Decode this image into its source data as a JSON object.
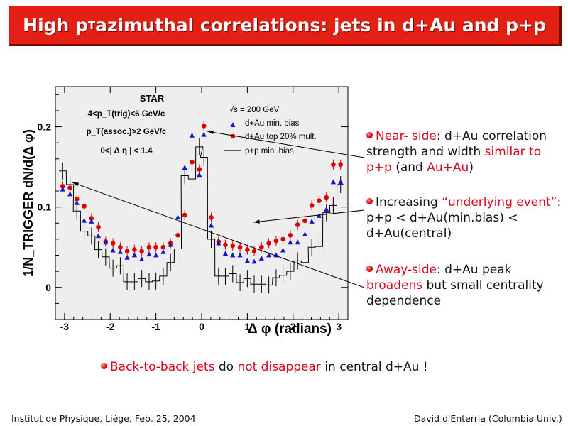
{
  "slide": {
    "title_pre": "High p",
    "title_sub": "T",
    "title_post": " azimuthal correlations: jets in d+Au and p+p",
    "bullets": [
      {
        "parts": [
          {
            "t": "Near- side",
            "red": true
          },
          {
            "t": ": d+Au correlation strength and width ",
            "red": false
          },
          {
            "t": "similar to p+p",
            "red": true
          },
          {
            "t": " (and ",
            "red": false
          },
          {
            "t": "Au+Au",
            "red": true
          },
          {
            "t": ")",
            "red": false
          }
        ]
      },
      {
        "parts": [
          {
            "t": "Increasing ",
            "red": false
          },
          {
            "t": "“underlying event”",
            "red": true
          },
          {
            "t": ": p+p < d+Au(min.bias) < d+Au(central)",
            "red": false
          }
        ]
      },
      {
        "parts": [
          {
            "t": "Away-side",
            "red": true
          },
          {
            "t": ": d+Au peak ",
            "red": false
          },
          {
            "t": "broadens",
            "red": true
          },
          {
            "t": " but small centrality dependence",
            "red": false
          }
        ]
      }
    ],
    "bottom": [
      {
        "t": "Back-to-back jets",
        "red": true
      },
      {
        "t": " do ",
        "red": false
      },
      {
        "t": "not disappear",
        "red": true
      },
      {
        "t": " in central d+Au !",
        "red": false
      }
    ],
    "footer_left": "Institut de Physique, Liège, Feb. 25, 2004",
    "footer_right": "David d'Enterria (Columbia Univ.)"
  },
  "chart_data": {
    "type": "scatter",
    "ylabel": "1/N_TRIGGER dN/d(Δ φ)",
    "xlabel": "Δ φ (radians)",
    "xlim": [
      -3.2,
      3.2
    ],
    "ylim": [
      -0.04,
      0.25
    ],
    "x_ticks": [
      -3,
      -2,
      -1,
      0,
      1,
      2,
      3
    ],
    "y_ticks": [
      0,
      0.1,
      0.2
    ],
    "annotations": [
      "STAR",
      "4<p_T(trig)<6 GeV/c",
      "p_T(assoc.)>2 GeV/c",
      "0<| Δ η | < 1.4",
      "√s = 200 GeV"
    ],
    "legend": [
      "d+Au min. bias",
      "d+Au top 20% mult.",
      "p+p min. bias"
    ],
    "x": [
      -3.04,
      -2.88,
      -2.73,
      -2.57,
      -2.41,
      -2.26,
      -2.1,
      -1.94,
      -1.78,
      -1.63,
      -1.47,
      -1.31,
      -1.15,
      -1.0,
      -0.84,
      -0.68,
      -0.52,
      -0.37,
      -0.21,
      -0.05,
      0.05,
      0.21,
      0.37,
      0.52,
      0.68,
      0.84,
      1.0,
      1.15,
      1.31,
      1.47,
      1.63,
      1.78,
      1.94,
      2.1,
      2.26,
      2.41,
      2.57,
      2.73,
      2.88,
      3.04
    ],
    "series": [
      {
        "name": "d+Au min. bias",
        "marker": "triangle",
        "color": "#1414c8",
        "values": [
          0.122,
          0.116,
          0.105,
          0.083,
          0.082,
          0.064,
          0.056,
          0.046,
          0.044,
          0.037,
          0.04,
          0.035,
          0.041,
          0.04,
          0.044,
          0.053,
          0.087,
          0.149,
          0.189,
          0.14,
          0.19,
          0.077,
          0.055,
          0.042,
          0.04,
          0.04,
          0.033,
          0.032,
          0.036,
          0.04,
          0.04,
          0.046,
          0.056,
          0.056,
          0.066,
          0.082,
          0.089,
          0.097,
          0.131,
          0.131
        ]
      },
      {
        "name": "d+Au top 20% mult.",
        "marker": "circle",
        "color": "#dc0000",
        "values": [
          0.126,
          0.124,
          0.11,
          0.101,
          0.086,
          0.075,
          0.057,
          0.055,
          0.05,
          0.045,
          0.047,
          0.045,
          0.05,
          0.05,
          0.05,
          0.055,
          0.065,
          0.09,
          0.156,
          0.147,
          0.201,
          0.087,
          0.057,
          0.053,
          0.052,
          0.05,
          0.047,
          0.045,
          0.05,
          0.055,
          0.058,
          0.06,
          0.065,
          0.078,
          0.083,
          0.102,
          0.108,
          0.112,
          0.153,
          0.153
        ]
      },
      {
        "name": "p+p min. bias",
        "marker": "histogram",
        "color": "#000000",
        "values": [
          0.145,
          0.128,
          0.095,
          0.07,
          0.064,
          0.047,
          0.038,
          0.024,
          0.027,
          0.007,
          0.007,
          0.011,
          0.007,
          0.008,
          0.014,
          0.031,
          0.048,
          0.139,
          0.135,
          0.175,
          0.162,
          0.06,
          0.014,
          0.014,
          0.017,
          0.006,
          0.011,
          0.004,
          0.004,
          0.003,
          0.012,
          0.015,
          0.02,
          0.033,
          0.031,
          0.05,
          0.051,
          0.093,
          0.102,
          0.128
        ]
      }
    ]
  }
}
